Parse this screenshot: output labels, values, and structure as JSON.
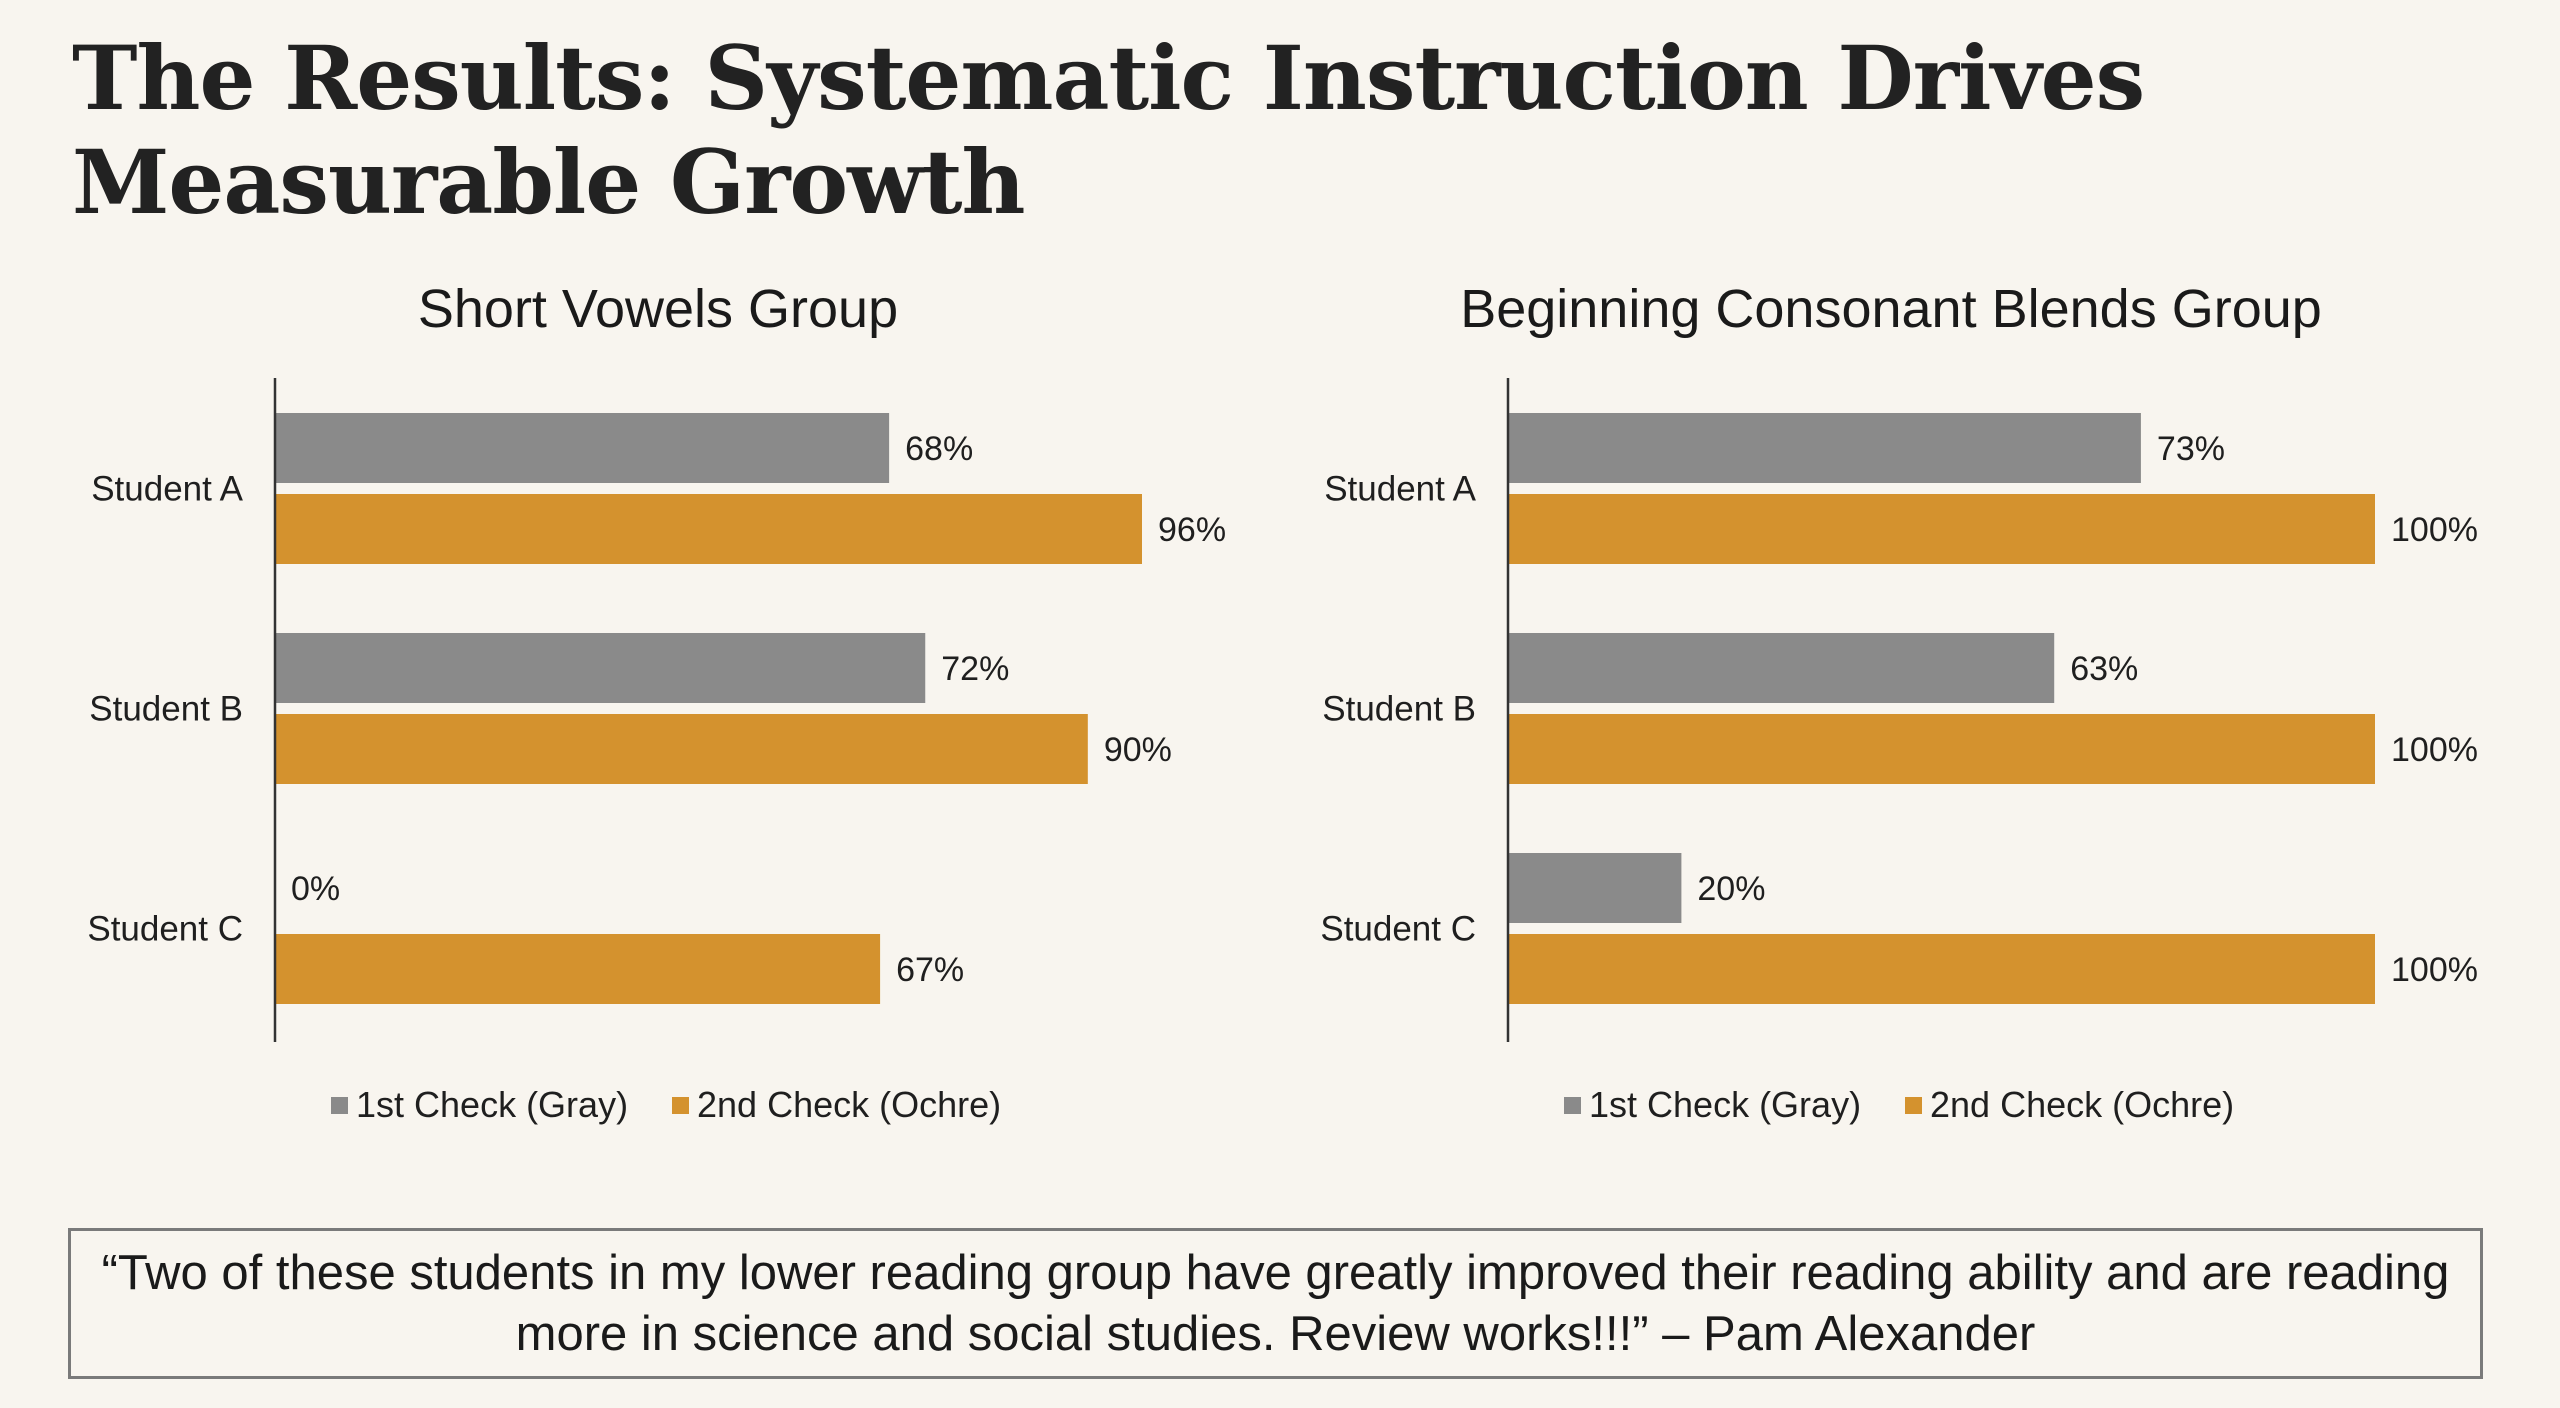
{
  "title": "The Results: Systematic Instruction Drives Measurable Growth",
  "colors": {
    "background": "#F8F5EF",
    "first_check": "#8A8A8A",
    "second_check": "#D4922E",
    "axis": "#333333"
  },
  "chart_data": [
    {
      "type": "bar",
      "orientation": "horizontal",
      "title": "Short Vowels Group",
      "categories": [
        "Student A",
        "Student B",
        "Student C"
      ],
      "series": [
        {
          "name": "1st Check (Gray)",
          "values": [
            68,
            72,
            0
          ],
          "labels": [
            "68%",
            "72%",
            "0%"
          ]
        },
        {
          "name": "2nd Check (Ochre)",
          "values": [
            96,
            90,
            67
          ],
          "labels": [
            "96%",
            "90%",
            "67%"
          ]
        }
      ],
      "xlabel": "",
      "ylabel": "",
      "xlim": [
        0,
        96
      ],
      "grid": false,
      "legend": "bottom"
    },
    {
      "type": "bar",
      "orientation": "horizontal",
      "title": "Beginning Consonant Blends Group",
      "categories": [
        "Student A",
        "Student B",
        "Student C"
      ],
      "series": [
        {
          "name": "1st Check (Gray)",
          "values": [
            73,
            63,
            20
          ],
          "labels": [
            "73%",
            "63%",
            "20%"
          ]
        },
        {
          "name": "2nd Check (Ochre)",
          "values": [
            100,
            100,
            100
          ],
          "labels": [
            "100%",
            "100%",
            "100%"
          ]
        }
      ],
      "xlabel": "",
      "ylabel": "",
      "xlim": [
        0,
        100
      ],
      "grid": false,
      "legend": "bottom"
    }
  ],
  "quote": {
    "text": "“Two of these students in my lower reading group have greatly improved their reading ability and are reading more in science and social studies. Review works!!!” – Pam Alexander"
  }
}
